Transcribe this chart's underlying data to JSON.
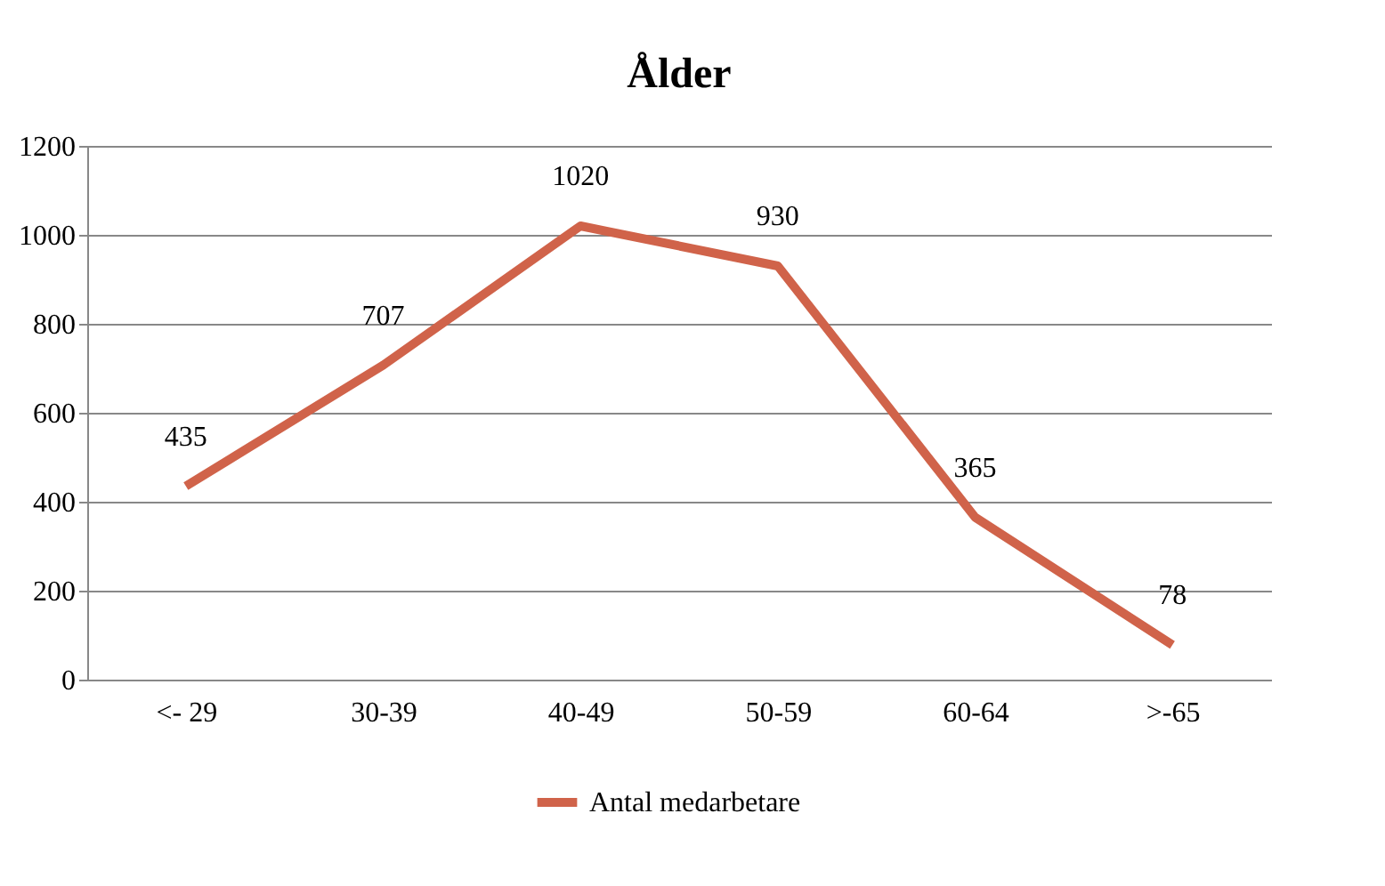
{
  "chart_data": {
    "type": "line",
    "title": "Ålder",
    "categories": [
      "<- 29",
      "30-39",
      "40-49",
      "50-59",
      "60-64",
      ">-65"
    ],
    "series": [
      {
        "name": "Antal medarbetare",
        "color": "#d0634a",
        "values": [
          435,
          707,
          1020,
          930,
          365,
          78
        ]
      }
    ],
    "ylim": [
      0,
      1200
    ],
    "yticks": [
      0,
      200,
      400,
      600,
      800,
      1000,
      1200
    ],
    "grid": "y",
    "legend": "bottom",
    "data_labels": true,
    "marker": "none",
    "line_style": "solid"
  }
}
